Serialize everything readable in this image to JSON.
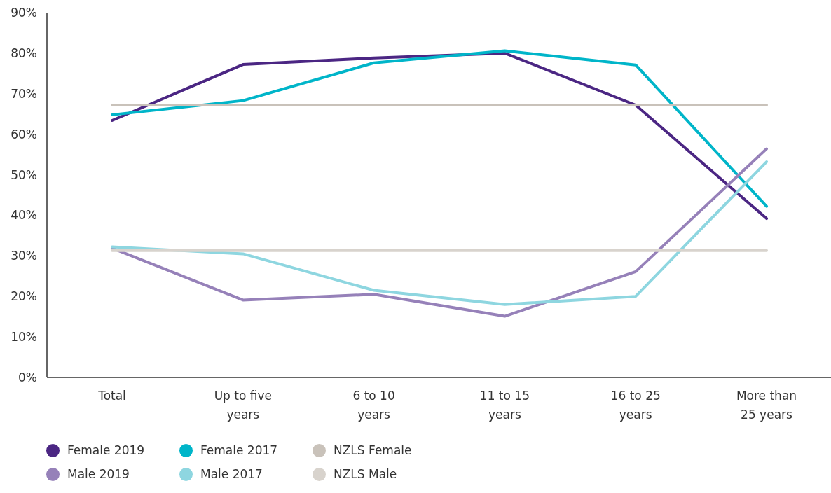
{
  "chart_data": {
    "type": "line",
    "categories": [
      "Total",
      "Up to five years",
      "6 to 10 years",
      "11 to 15 years",
      "16 to 25 years",
      "More than 25 years"
    ],
    "series": [
      {
        "name": "Female 2019",
        "color": "#4b2683",
        "values": [
          63.4,
          77.2,
          78.8,
          80.0,
          67.2,
          39.2
        ]
      },
      {
        "name": "Female 2017",
        "color": "#00b5c9",
        "values": [
          64.8,
          68.3,
          77.6,
          80.6,
          77.1,
          42.2
        ]
      },
      {
        "name": "NZLS Female",
        "color": "#c9c2ba",
        "values": [
          67.2,
          67.2,
          67.2,
          67.2,
          67.2,
          67.2
        ]
      },
      {
        "name": "Male 2019",
        "color": "#9681b9",
        "values": [
          31.9,
          19.1,
          20.5,
          15.1,
          26.1,
          56.4
        ]
      },
      {
        "name": "Male 2017",
        "color": "#8ed6e0",
        "values": [
          32.2,
          30.5,
          21.5,
          18.0,
          20.0,
          53.2
        ]
      },
      {
        "name": "NZLS Male",
        "color": "#d8d3cd",
        "values": [
          31.3,
          31.3,
          31.3,
          31.3,
          31.3,
          31.3
        ]
      }
    ],
    "ylim": [
      0,
      90
    ],
    "yticks": [
      {
        "value": 0,
        "label": "0%"
      },
      {
        "value": 10,
        "label": "10%"
      },
      {
        "value": 20,
        "label": "20%"
      },
      {
        "value": 30,
        "label": "30%"
      },
      {
        "value": 40,
        "label": "40%"
      },
      {
        "value": 50,
        "label": "50%"
      },
      {
        "value": 60,
        "label": "60%"
      },
      {
        "value": 70,
        "label": "70%"
      },
      {
        "value": 80,
        "label": "80%"
      },
      {
        "value": 90,
        "label": "90%"
      }
    ],
    "grid": false,
    "legend": "bottom",
    "marker": "none",
    "line_style": "solid"
  }
}
